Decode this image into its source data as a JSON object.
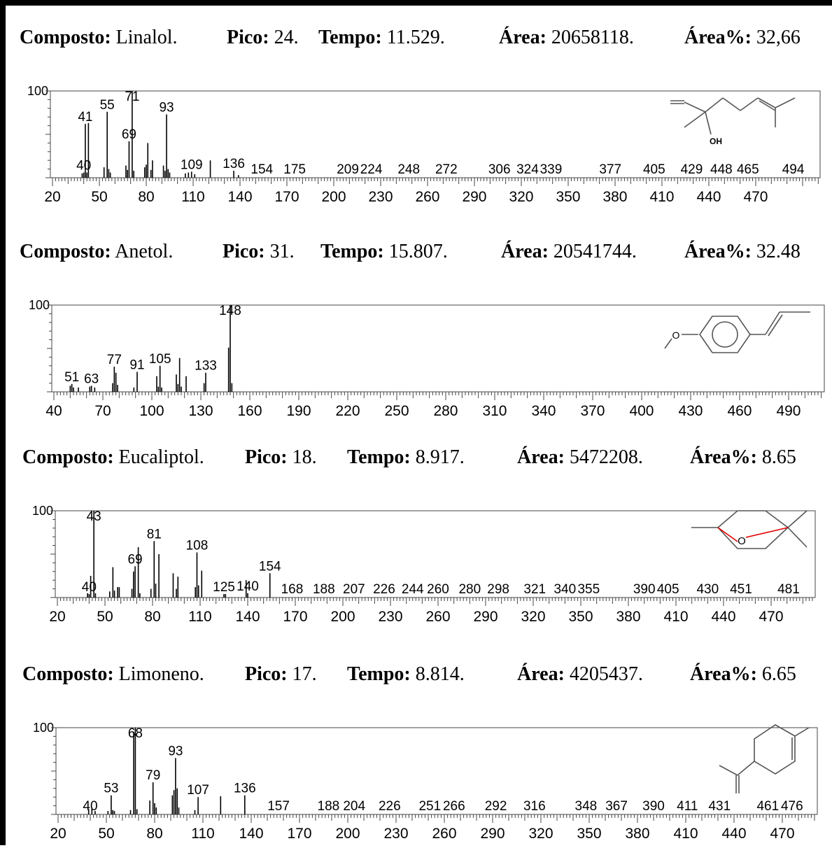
{
  "chart_data": [
    {
      "type": "bar",
      "header": {
        "compound_label": "Composto:",
        "compound": "Linalol.",
        "peak_label": "Pico:",
        "peak": "24.",
        "time_label": "Tempo:",
        "time": "11.529.",
        "area_label": "Área:",
        "area": "20658118.",
        "area_pct_label": "Área%:",
        "area_pct": "32,66"
      },
      "y_tick_label": "100",
      "xlim": [
        20,
        500
      ],
      "x_ticks": [
        20,
        50,
        80,
        110,
        140,
        170,
        200,
        230,
        260,
        290,
        320,
        350,
        380,
        410,
        440,
        470
      ],
      "peaks": [
        {
          "x": 39,
          "y": 5
        },
        {
          "x": 40,
          "y": 6
        },
        {
          "x": 41,
          "y": 62
        },
        {
          "x": 42,
          "y": 6
        },
        {
          "x": 43,
          "y": 63
        },
        {
          "x": 53,
          "y": 12
        },
        {
          "x": 55,
          "y": 76
        },
        {
          "x": 56,
          "y": 10
        },
        {
          "x": 57,
          "y": 6
        },
        {
          "x": 67,
          "y": 14
        },
        {
          "x": 68,
          "y": 9
        },
        {
          "x": 69,
          "y": 42
        },
        {
          "x": 71,
          "y": 100
        },
        {
          "x": 72,
          "y": 8
        },
        {
          "x": 79,
          "y": 12
        },
        {
          "x": 80,
          "y": 15
        },
        {
          "x": 81,
          "y": 40
        },
        {
          "x": 83,
          "y": 9
        },
        {
          "x": 84,
          "y": 20
        },
        {
          "x": 91,
          "y": 14
        },
        {
          "x": 92,
          "y": 8
        },
        {
          "x": 93,
          "y": 73
        },
        {
          "x": 94,
          "y": 10
        },
        {
          "x": 95,
          "y": 6
        },
        {
          "x": 105,
          "y": 5
        },
        {
          "x": 107,
          "y": 6
        },
        {
          "x": 109,
          "y": 7
        },
        {
          "x": 111,
          "y": 4
        },
        {
          "x": 121,
          "y": 20
        },
        {
          "x": 136,
          "y": 8
        },
        {
          "x": 139,
          "y": 3
        }
      ],
      "peak_labels": [
        {
          "x": 40,
          "text": "40"
        },
        {
          "x": 41,
          "text": "41"
        },
        {
          "x": 55,
          "text": "55"
        },
        {
          "x": 69,
          "text": "69"
        },
        {
          "x": 71,
          "text": "71"
        },
        {
          "x": 93,
          "text": "93"
        },
        {
          "x": 109,
          "text": "109"
        },
        {
          "x": 136,
          "text": "136"
        },
        {
          "x": 154,
          "text": "154"
        },
        {
          "x": 175,
          "text": "175"
        },
        {
          "x": 209,
          "text": "209"
        },
        {
          "x": 224,
          "text": "224"
        },
        {
          "x": 248,
          "text": "248"
        },
        {
          "x": 272,
          "text": "272"
        },
        {
          "x": 306,
          "text": "306"
        },
        {
          "x": 324,
          "text": "324"
        },
        {
          "x": 339,
          "text": "339"
        },
        {
          "x": 377,
          "text": "377"
        },
        {
          "x": 405,
          "text": "405"
        },
        {
          "x": 429,
          "text": "429"
        },
        {
          "x": 448,
          "text": "448"
        },
        {
          "x": 465,
          "text": "465"
        },
        {
          "x": 494,
          "text": "494"
        }
      ],
      "structure": {
        "name": "linalool-structure",
        "heteroatom_label": "OH",
        "heteroatom_color": "#e00000"
      }
    },
    {
      "type": "bar",
      "header": {
        "compound_label": "Composto:",
        "compound": "Anetol.",
        "peak_label": "Pico:",
        "peak": "31.",
        "time_label": "Tempo:",
        "time": "15.807.",
        "area_label": "Área:",
        "area": "20541744.",
        "area_pct_label": "Área%:",
        "area_pct": "32.48"
      },
      "y_tick_label": "100",
      "xlim": [
        40,
        510
      ],
      "x_ticks": [
        40,
        70,
        100,
        130,
        160,
        190,
        220,
        250,
        280,
        310,
        340,
        370,
        400,
        430,
        460,
        490
      ],
      "peaks": [
        {
          "x": 50,
          "y": 7
        },
        {
          "x": 51,
          "y": 9
        },
        {
          "x": 52,
          "y": 5
        },
        {
          "x": 55,
          "y": 5
        },
        {
          "x": 62,
          "y": 6
        },
        {
          "x": 63,
          "y": 7
        },
        {
          "x": 65,
          "y": 5
        },
        {
          "x": 76,
          "y": 10
        },
        {
          "x": 77,
          "y": 29
        },
        {
          "x": 78,
          "y": 22
        },
        {
          "x": 79,
          "y": 8
        },
        {
          "x": 89,
          "y": 5
        },
        {
          "x": 91,
          "y": 23
        },
        {
          "x": 103,
          "y": 18
        },
        {
          "x": 104,
          "y": 6
        },
        {
          "x": 105,
          "y": 30
        },
        {
          "x": 106,
          "y": 5
        },
        {
          "x": 115,
          "y": 20
        },
        {
          "x": 116,
          "y": 9
        },
        {
          "x": 117,
          "y": 39
        },
        {
          "x": 118,
          "y": 6
        },
        {
          "x": 121,
          "y": 18
        },
        {
          "x": 132,
          "y": 10
        },
        {
          "x": 133,
          "y": 22
        },
        {
          "x": 147,
          "y": 51
        },
        {
          "x": 148,
          "y": 100
        },
        {
          "x": 149,
          "y": 10
        }
      ],
      "peak_labels": [
        {
          "x": 51,
          "text": "51"
        },
        {
          "x": 63,
          "text": "63"
        },
        {
          "x": 77,
          "text": "77"
        },
        {
          "x": 91,
          "text": "91"
        },
        {
          "x": 105,
          "text": "105"
        },
        {
          "x": 133,
          "text": "133"
        },
        {
          "x": 148,
          "text": "148"
        }
      ],
      "structure": {
        "name": "anethole-structure",
        "heteroatom_label": "O",
        "heteroatom_color": "#e00000"
      }
    },
    {
      "type": "bar",
      "header": {
        "compound_label": "Composto:",
        "compound": "Eucaliptol.",
        "peak_label": "Pico:",
        "peak": "18.",
        "time_label": "Tempo:",
        "time": "8.917.",
        "area_label": "Área:",
        "area": "5472208.",
        "area_pct_label": "Área%:",
        "area_pct": "8.65"
      },
      "y_tick_label": "100",
      "xlim": [
        20,
        500
      ],
      "x_ticks": [
        20,
        50,
        80,
        110,
        140,
        170,
        200,
        230,
        260,
        290,
        320,
        350,
        380,
        410,
        440,
        470
      ],
      "peaks": [
        {
          "x": 39,
          "y": 5
        },
        {
          "x": 40,
          "y": 4
        },
        {
          "x": 41,
          "y": 25
        },
        {
          "x": 43,
          "y": 100
        },
        {
          "x": 44,
          "y": 5
        },
        {
          "x": 53,
          "y": 7
        },
        {
          "x": 55,
          "y": 35
        },
        {
          "x": 56,
          "y": 8
        },
        {
          "x": 58,
          "y": 12
        },
        {
          "x": 59,
          "y": 12
        },
        {
          "x": 67,
          "y": 10
        },
        {
          "x": 68,
          "y": 30
        },
        {
          "x": 69,
          "y": 36
        },
        {
          "x": 71,
          "y": 58
        },
        {
          "x": 72,
          "y": 5
        },
        {
          "x": 79,
          "y": 10
        },
        {
          "x": 81,
          "y": 65
        },
        {
          "x": 82,
          "y": 16
        },
        {
          "x": 84,
          "y": 50
        },
        {
          "x": 93,
          "y": 28
        },
        {
          "x": 95,
          "y": 10
        },
        {
          "x": 96,
          "y": 24
        },
        {
          "x": 107,
          "y": 12
        },
        {
          "x": 108,
          "y": 52
        },
        {
          "x": 109,
          "y": 14
        },
        {
          "x": 111,
          "y": 31
        },
        {
          "x": 125,
          "y": 4
        },
        {
          "x": 126,
          "y": 4
        },
        {
          "x": 139,
          "y": 20
        },
        {
          "x": 140,
          "y": 5
        },
        {
          "x": 154,
          "y": 28
        }
      ],
      "peak_labels": [
        {
          "x": 40,
          "text": "40"
        },
        {
          "x": 43,
          "text": "43"
        },
        {
          "x": 69,
          "text": "69"
        },
        {
          "x": 81,
          "text": "81"
        },
        {
          "x": 108,
          "text": "108"
        },
        {
          "x": 125,
          "text": "125"
        },
        {
          "x": 140,
          "text": "140"
        },
        {
          "x": 154,
          "text": "154"
        },
        {
          "x": 168,
          "text": "168"
        },
        {
          "x": 188,
          "text": "188"
        },
        {
          "x": 207,
          "text": "207"
        },
        {
          "x": 226,
          "text": "226"
        },
        {
          "x": 244,
          "text": "244"
        },
        {
          "x": 260,
          "text": "260"
        },
        {
          "x": 280,
          "text": "280"
        },
        {
          "x": 298,
          "text": "298"
        },
        {
          "x": 321,
          "text": "321"
        },
        {
          "x": 340,
          "text": "340"
        },
        {
          "x": 355,
          "text": "355"
        },
        {
          "x": 390,
          "text": "390"
        },
        {
          "x": 405,
          "text": "405"
        },
        {
          "x": 430,
          "text": "430"
        },
        {
          "x": 451,
          "text": "451"
        },
        {
          "x": 481,
          "text": "481"
        }
      ],
      "structure": {
        "name": "eucalyptol-structure",
        "heteroatom_label": "O",
        "heteroatom_color": "#e00000"
      }
    },
    {
      "type": "bar",
      "header": {
        "compound_label": "Composto:",
        "compound": "Limoneno.",
        "peak_label": "Pico:",
        "peak": "17.",
        "time_label": "Tempo:",
        "time": "8.814.",
        "area_label": "Área:",
        "area": "4205437.",
        "area_pct_label": "Área%:",
        "area_pct": "6.65"
      },
      "y_tick_label": "100",
      "xlim": [
        20,
        500
      ],
      "x_ticks": [
        20,
        50,
        80,
        110,
        140,
        170,
        200,
        230,
        260,
        290,
        320,
        350,
        380,
        410,
        440,
        470
      ],
      "peaks": [
        {
          "x": 39,
          "y": 6
        },
        {
          "x": 41,
          "y": 7
        },
        {
          "x": 43,
          "y": 4
        },
        {
          "x": 51,
          "y": 4
        },
        {
          "x": 53,
          "y": 22
        },
        {
          "x": 54,
          "y": 5
        },
        {
          "x": 55,
          "y": 4
        },
        {
          "x": 65,
          "y": 5
        },
        {
          "x": 67,
          "y": 95
        },
        {
          "x": 68,
          "y": 100
        },
        {
          "x": 69,
          "y": 6
        },
        {
          "x": 77,
          "y": 16
        },
        {
          "x": 79,
          "y": 37
        },
        {
          "x": 80,
          "y": 13
        },
        {
          "x": 81,
          "y": 8
        },
        {
          "x": 91,
          "y": 22
        },
        {
          "x": 92,
          "y": 28
        },
        {
          "x": 93,
          "y": 65
        },
        {
          "x": 94,
          "y": 30
        },
        {
          "x": 95,
          "y": 8
        },
        {
          "x": 105,
          "y": 5
        },
        {
          "x": 107,
          "y": 20
        },
        {
          "x": 121,
          "y": 21
        },
        {
          "x": 136,
          "y": 22
        }
      ],
      "peak_labels": [
        {
          "x": 40,
          "text": "40"
        },
        {
          "x": 53,
          "text": "53"
        },
        {
          "x": 68,
          "text": "68"
        },
        {
          "x": 79,
          "text": "79"
        },
        {
          "x": 93,
          "text": "93"
        },
        {
          "x": 107,
          "text": "107"
        },
        {
          "x": 136,
          "text": "136"
        },
        {
          "x": 157,
          "text": "157"
        },
        {
          "x": 188,
          "text": "188"
        },
        {
          "x": 204,
          "text": "204"
        },
        {
          "x": 226,
          "text": "226"
        },
        {
          "x": 251,
          "text": "251"
        },
        {
          "x": 266,
          "text": "266"
        },
        {
          "x": 292,
          "text": "292"
        },
        {
          "x": 316,
          "text": "316"
        },
        {
          "x": 348,
          "text": "348"
        },
        {
          "x": 367,
          "text": "367"
        },
        {
          "x": 390,
          "text": "390"
        },
        {
          "x": 411,
          "text": "411"
        },
        {
          "x": 431,
          "text": "431"
        },
        {
          "x": 461,
          "text": "461"
        },
        {
          "x": 476,
          "text": "476"
        }
      ],
      "structure": {
        "name": "limonene-structure",
        "heteroatom_label": "",
        "heteroatom_color": "#e00000"
      }
    }
  ]
}
